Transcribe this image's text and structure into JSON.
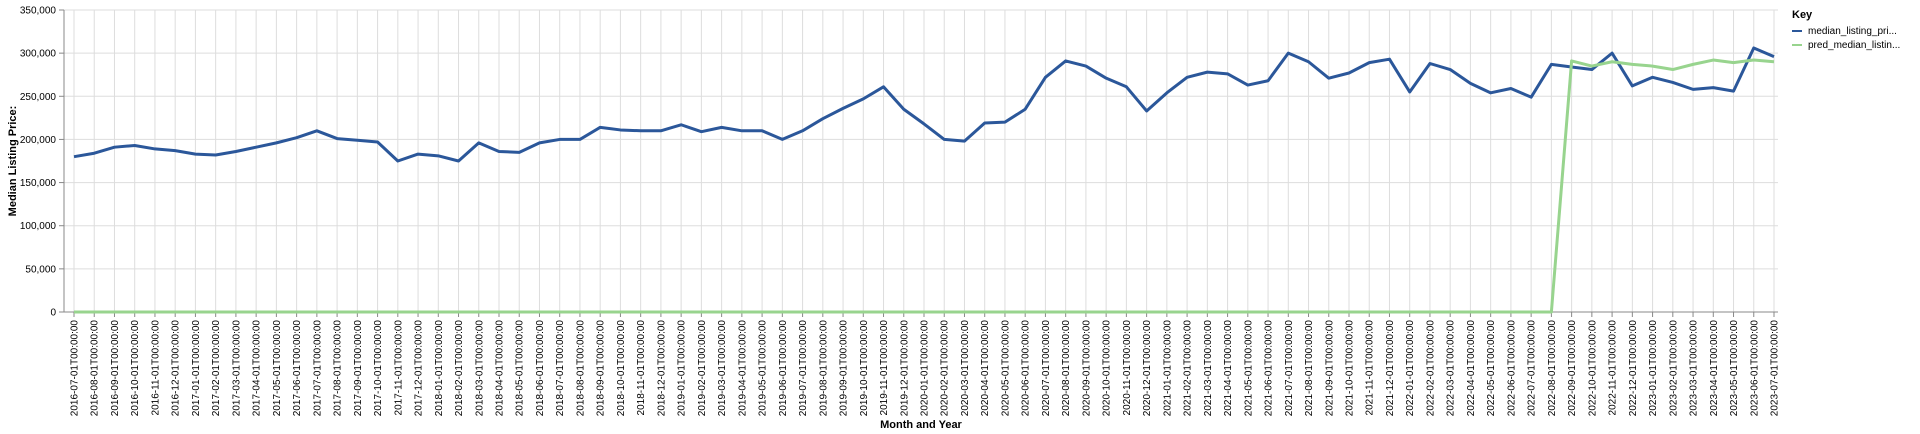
{
  "chart_data": {
    "type": "line",
    "xlabel": "Month and Year",
    "ylabel": "Median Listing Price:",
    "ylim": [
      0,
      350000
    ],
    "y_ticks": [
      0,
      50000,
      100000,
      150000,
      200000,
      250000,
      300000,
      350000
    ],
    "y_tick_labels": [
      "0",
      "50,000",
      "100,000",
      "150,000",
      "200,000",
      "250,000",
      "300,000",
      "350,000"
    ],
    "grid": true,
    "legend_placement": "top-right",
    "legend_title": "Key",
    "x": [
      "2016-07-01T00:00:00",
      "2016-08-01T00:00:00",
      "2016-09-01T00:00:00",
      "2016-10-01T00:00:00",
      "2016-11-01T00:00:00",
      "2016-12-01T00:00:00",
      "2017-01-01T00:00:00",
      "2017-02-01T00:00:00",
      "2017-03-01T00:00:00",
      "2017-04-01T00:00:00",
      "2017-05-01T00:00:00",
      "2017-06-01T00:00:00",
      "2017-07-01T00:00:00",
      "2017-08-01T00:00:00",
      "2017-09-01T00:00:00",
      "2017-10-01T00:00:00",
      "2017-11-01T00:00:00",
      "2017-12-01T00:00:00",
      "2018-01-01T00:00:00",
      "2018-02-01T00:00:00",
      "2018-03-01T00:00:00",
      "2018-04-01T00:00:00",
      "2018-05-01T00:00:00",
      "2018-06-01T00:00:00",
      "2018-07-01T00:00:00",
      "2018-08-01T00:00:00",
      "2018-09-01T00:00:00",
      "2018-10-01T00:00:00",
      "2018-11-01T00:00:00",
      "2018-12-01T00:00:00",
      "2019-01-01T00:00:00",
      "2019-02-01T00:00:00",
      "2019-03-01T00:00:00",
      "2019-04-01T00:00:00",
      "2019-05-01T00:00:00",
      "2019-06-01T00:00:00",
      "2019-07-01T00:00:00",
      "2019-08-01T00:00:00",
      "2019-09-01T00:00:00",
      "2019-10-01T00:00:00",
      "2019-11-01T00:00:00",
      "2019-12-01T00:00:00",
      "2020-01-01T00:00:00",
      "2020-02-01T00:00:00",
      "2020-03-01T00:00:00",
      "2020-04-01T00:00:00",
      "2020-05-01T00:00:00",
      "2020-06-01T00:00:00",
      "2020-07-01T00:00:00",
      "2020-08-01T00:00:00",
      "2020-09-01T00:00:00",
      "2020-10-01T00:00:00",
      "2020-11-01T00:00:00",
      "2020-12-01T00:00:00",
      "2021-01-01T00:00:00",
      "2021-02-01T00:00:00",
      "2021-03-01T00:00:00",
      "2021-04-01T00:00:00",
      "2021-05-01T00:00:00",
      "2021-06-01T00:00:00",
      "2021-07-01T00:00:00",
      "2021-08-01T00:00:00",
      "2021-09-01T00:00:00",
      "2021-10-01T00:00:00",
      "2021-11-01T00:00:00",
      "2021-12-01T00:00:00",
      "2022-01-01T00:00:00",
      "2022-02-01T00:00:00",
      "2022-03-01T00:00:00",
      "2022-04-01T00:00:00",
      "2022-05-01T00:00:00",
      "2022-06-01T00:00:00",
      "2022-07-01T00:00:00",
      "2022-08-01T00:00:00",
      "2022-09-01T00:00:00",
      "2022-10-01T00:00:00",
      "2022-11-01T00:00:00",
      "2022-12-01T00:00:00",
      "2023-01-01T00:00:00",
      "2023-02-01T00:00:00",
      "2023-03-01T00:00:00",
      "2023-04-01T00:00:00",
      "2023-05-01T00:00:00",
      "2023-06-01T00:00:00",
      "2023-07-01T00:00:00"
    ],
    "series": [
      {
        "name": "median_listing_pri...",
        "color": "#2b579a",
        "values": [
          180000,
          184000,
          191000,
          193000,
          189000,
          187000,
          183000,
          182000,
          186000,
          191000,
          196000,
          202000,
          210000,
          201000,
          199000,
          197000,
          175000,
          183000,
          181000,
          175000,
          196000,
          186000,
          185000,
          196000,
          200000,
          200000,
          214000,
          211000,
          210000,
          210000,
          217000,
          209000,
          214000,
          210000,
          210000,
          200000,
          210000,
          224000,
          236000,
          247000,
          261000,
          235000,
          218000,
          200000,
          198000,
          219000,
          220000,
          235000,
          272000,
          291000,
          285000,
          271000,
          261000,
          233000,
          254000,
          272000,
          278000,
          276000,
          263000,
          268000,
          300000,
          290000,
          271000,
          277000,
          289000,
          293000,
          255000,
          288000,
          281000,
          265000,
          254000,
          259000,
          249000,
          287000,
          284000,
          281000,
          300000,
          262000,
          272000,
          266000,
          258000,
          260000,
          256000,
          306000,
          296000
        ]
      },
      {
        "name": "pred_median_listin...",
        "color": "#98d48e",
        "values": [
          0,
          0,
          0,
          0,
          0,
          0,
          0,
          0,
          0,
          0,
          0,
          0,
          0,
          0,
          0,
          0,
          0,
          0,
          0,
          0,
          0,
          0,
          0,
          0,
          0,
          0,
          0,
          0,
          0,
          0,
          0,
          0,
          0,
          0,
          0,
          0,
          0,
          0,
          0,
          0,
          0,
          0,
          0,
          0,
          0,
          0,
          0,
          0,
          0,
          0,
          0,
          0,
          0,
          0,
          0,
          0,
          0,
          0,
          0,
          0,
          0,
          0,
          0,
          0,
          0,
          0,
          0,
          0,
          0,
          0,
          0,
          0,
          0,
          0,
          291000,
          285000,
          290000,
          287000,
          285000,
          281000,
          287000,
          292000,
          289000,
          292000,
          290000
        ]
      }
    ]
  }
}
